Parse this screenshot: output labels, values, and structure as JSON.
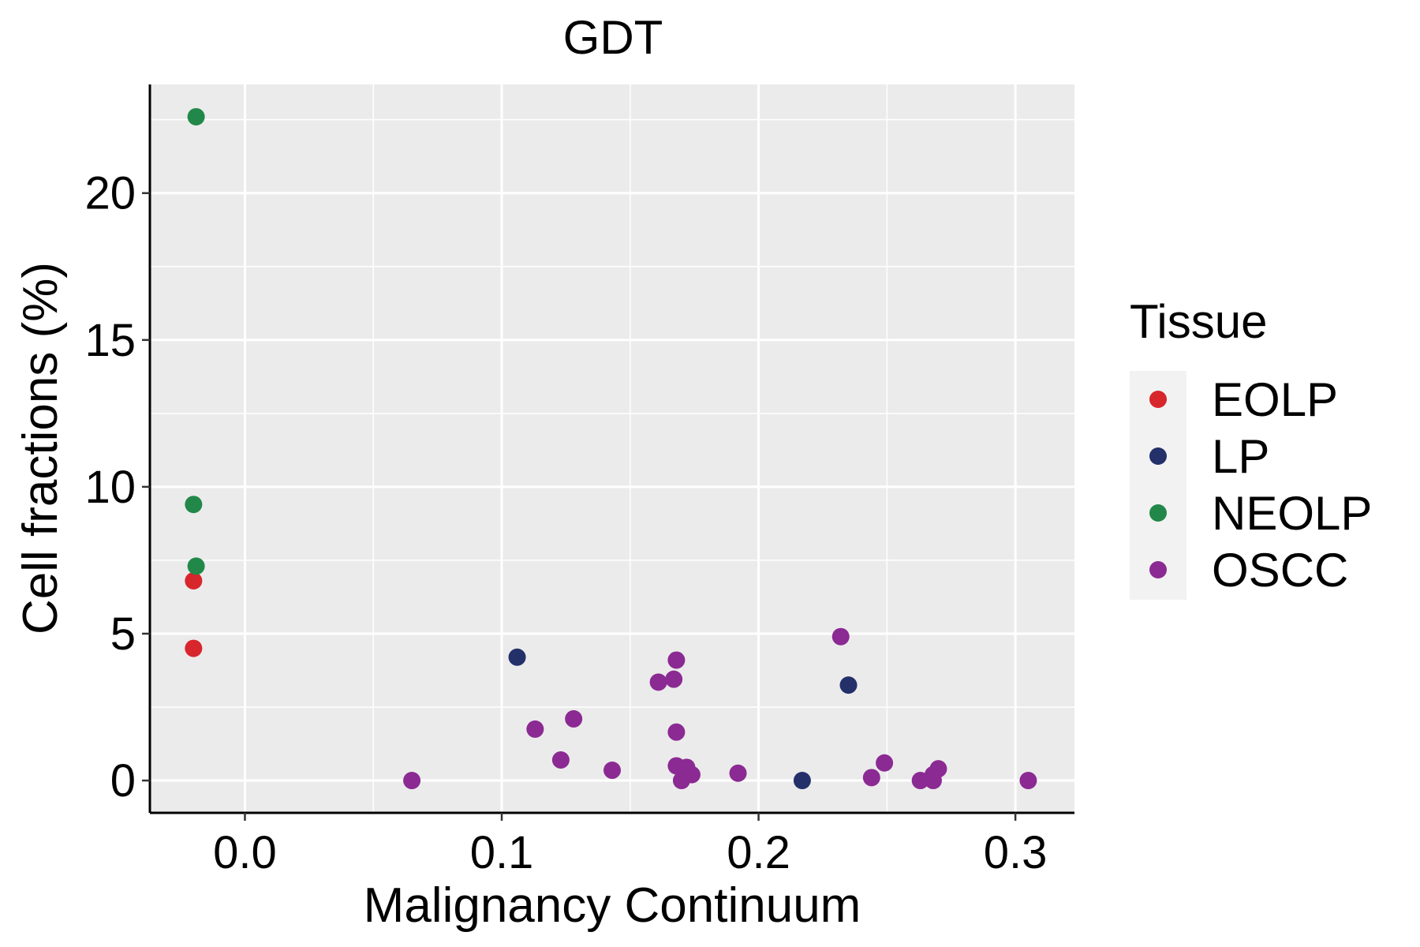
{
  "chart_data": {
    "type": "scatter",
    "title": "GDT",
    "xlabel": "Malignancy Continuum",
    "ylabel": "Cell fractions (%)",
    "xlim": [
      -0.037,
      0.323
    ],
    "ylim": [
      -1.1,
      23.7
    ],
    "x_ticks": [
      0.0,
      0.1,
      0.2,
      0.3
    ],
    "x_tick_labels": [
      "0.0",
      "0.1",
      "0.2",
      "0.3"
    ],
    "y_ticks": [
      0,
      5,
      10,
      15,
      20
    ],
    "y_tick_labels": [
      "0",
      "5",
      "10",
      "15",
      "20"
    ],
    "grid": true,
    "legend": {
      "title": "Tissue",
      "position": "right",
      "entries": [
        "EOLP",
        "LP",
        "NEOLP",
        "OSCC"
      ]
    },
    "colors": {
      "EOLP": "#d7262c",
      "LP": "#23306a",
      "NEOLP": "#22884a",
      "OSCC": "#8b2a93"
    },
    "series": [
      {
        "name": "EOLP",
        "points": [
          [
            -0.02,
            6.8
          ],
          [
            -0.02,
            4.5
          ]
        ]
      },
      {
        "name": "LP",
        "points": [
          [
            0.106,
            4.2
          ],
          [
            0.235,
            3.25
          ],
          [
            0.217,
            0.0
          ]
        ]
      },
      {
        "name": "NEOLP",
        "points": [
          [
            -0.019,
            22.6
          ],
          [
            -0.02,
            9.4
          ],
          [
            -0.019,
            7.3
          ]
        ]
      },
      {
        "name": "OSCC",
        "points": [
          [
            0.065,
            0.0
          ],
          [
            0.113,
            1.75
          ],
          [
            0.123,
            0.7
          ],
          [
            0.128,
            2.1
          ],
          [
            0.143,
            0.35
          ],
          [
            0.161,
            3.35
          ],
          [
            0.167,
            3.45
          ],
          [
            0.168,
            4.1
          ],
          [
            0.168,
            1.65
          ],
          [
            0.168,
            0.5
          ],
          [
            0.17,
            0.0
          ],
          [
            0.172,
            0.45
          ],
          [
            0.174,
            0.2
          ],
          [
            0.192,
            0.25
          ],
          [
            0.232,
            4.9
          ],
          [
            0.244,
            0.1
          ],
          [
            0.249,
            0.6
          ],
          [
            0.263,
            0.0
          ],
          [
            0.268,
            0.0
          ],
          [
            0.268,
            0.2
          ],
          [
            0.27,
            0.4
          ],
          [
            0.305,
            0.0
          ]
        ]
      }
    ]
  }
}
